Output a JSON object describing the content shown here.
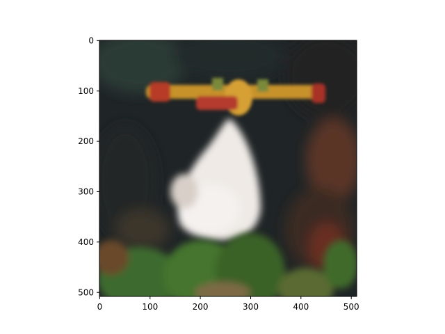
{
  "image_axes": {
    "x_ticks": [
      "0",
      "100",
      "200",
      "300",
      "400",
      "500"
    ],
    "y_ticks": [
      "0",
      "100",
      "200",
      "300",
      "400",
      "500"
    ],
    "x_range": [
      0,
      511
    ],
    "y_range": [
      511,
      0
    ],
    "content": "blurred-photo-of-firefighting-aircraft-dropping-water-over-forest",
    "colors": {
      "sky_dark": "#1f2426",
      "smoke_white": "#f0ece8",
      "plane_yellow": "#d39a2b",
      "plane_red": "#b73a28",
      "foliage_green": "#3e6a2d",
      "fire_orange": "#b35a2a",
      "axis": "#000000"
    }
  }
}
